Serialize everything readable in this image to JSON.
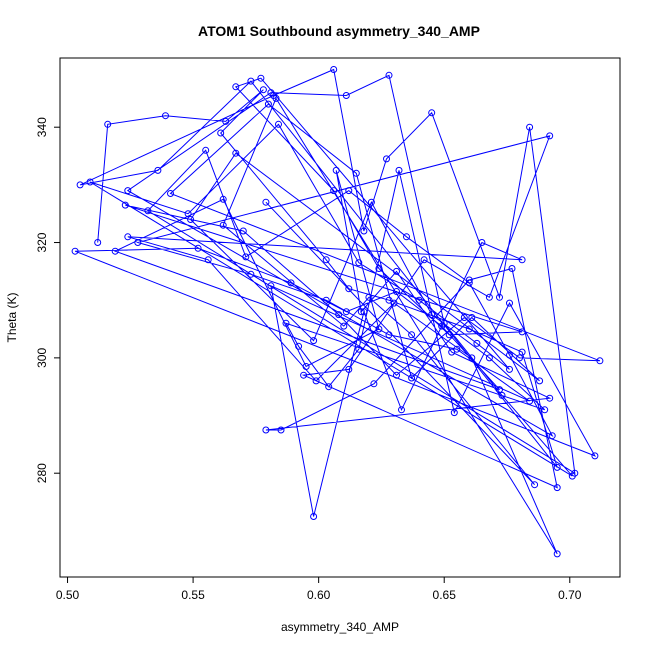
{
  "chart_data": {
    "type": "line",
    "title": "ATOM1 Southbound asymmetry_340_AMP",
    "xlabel": "asymmetry_340_AMP",
    "ylabel": "Theta (K)",
    "xlim": [
      0.497,
      0.72
    ],
    "ylim": [
      262,
      352
    ],
    "xticks": [
      0.5,
      0.55,
      0.6,
      0.65,
      0.7
    ],
    "xtick_labels": [
      "0.50",
      "0.55",
      "0.60",
      "0.65",
      "0.70"
    ],
    "yticks": [
      280,
      300,
      320,
      340
    ],
    "ytick_labels": [
      "280",
      "300",
      "320",
      "340"
    ],
    "grid": false,
    "series_color": "#0000ff",
    "marker": "open-circle",
    "x": [
      0.512,
      0.516,
      0.539,
      0.563,
      0.578,
      0.561,
      0.603,
      0.612,
      0.628,
      0.66,
      0.681,
      0.695,
      0.573,
      0.536,
      0.505,
      0.582,
      0.606,
      0.618,
      0.627,
      0.645,
      0.672,
      0.684,
      0.702,
      0.532,
      0.555,
      0.571,
      0.612,
      0.635,
      0.66,
      0.676,
      0.693,
      0.524,
      0.581,
      0.611,
      0.628,
      0.65,
      0.673,
      0.701,
      0.509,
      0.548,
      0.584,
      0.616,
      0.64,
      0.663,
      0.676,
      0.577,
      0.567,
      0.606,
      0.624,
      0.652,
      0.681,
      0.523,
      0.57,
      0.608,
      0.631,
      0.658,
      0.68,
      0.712,
      0.541,
      0.58,
      0.615,
      0.637,
      0.661,
      0.688,
      0.567,
      0.549,
      0.598,
      0.621,
      0.645,
      0.668,
      0.69,
      0.587,
      0.592,
      0.604,
      0.616,
      0.632,
      0.654,
      0.676,
      0.71,
      0.503,
      0.552,
      0.589,
      0.611,
      0.631,
      0.649,
      0.672,
      0.519,
      0.562,
      0.595,
      0.624,
      0.607,
      0.617,
      0.631,
      0.653,
      0.692,
      0.579,
      0.585,
      0.622,
      0.66,
      0.677,
      0.695,
      0.594,
      0.612,
      0.642,
      0.668,
      0.692,
      0.528,
      0.573,
      0.603,
      0.628,
      0.655,
      0.684,
      0.581,
      0.598,
      0.618,
      0.633,
      0.665,
      0.681,
      0.524,
      0.556,
      0.599,
      0.63,
      0.661,
      0.695,
      0.583,
      0.562,
      0.61,
      0.62,
      0.637,
      0.686,
      0.579
    ],
    "y": [
      320.0,
      340.5,
      342.0,
      341.0,
      346.5,
      339.0,
      317.0,
      312.0,
      310.0,
      305.0,
      301.0,
      281.0,
      348.0,
      332.5,
      330.0,
      345.5,
      350.0,
      322.0,
      334.5,
      342.5,
      310.5,
      340.0,
      280.0,
      325.5,
      336.0,
      317.5,
      329.0,
      321.0,
      313.0,
      300.5,
      286.5,
      329.0,
      346.0,
      345.5,
      349.0,
      306.0,
      293.5,
      279.5,
      330.5,
      325.0,
      340.5,
      316.5,
      310.0,
      302.5,
      298.0,
      348.5,
      347.0,
      329.0,
      315.5,
      304.0,
      304.5,
      326.5,
      322.0,
      307.5,
      297.0,
      307.0,
      300.0,
      299.5,
      328.5,
      344.0,
      332.0,
      296.5,
      307.0,
      296.0,
      335.5,
      324.0,
      303.0,
      327.0,
      307.5,
      300.0,
      291.0,
      306.0,
      302.0,
      295.0,
      301.5,
      332.5,
      290.5,
      309.5,
      283.0,
      318.5,
      319.0,
      313.0,
      308.0,
      311.5,
      305.5,
      294.5,
      318.5,
      327.5,
      298.5,
      305.0,
      332.5,
      308.0,
      315.0,
      301.0,
      293.0,
      287.5,
      287.5,
      295.5,
      313.5,
      315.5,
      277.5,
      297.0,
      298.0,
      317.0,
      310.5,
      338.5,
      320.0,
      314.5,
      310.0,
      304.0,
      301.5,
      292.5,
      312.5,
      272.5,
      308.0,
      291.0,
      320.0,
      317.0,
      321.0,
      317.0,
      296.0,
      309.5,
      300.0,
      266.0,
      345.0,
      323.0,
      305.5,
      310.5,
      304.0,
      278.0,
      327.0
    ]
  }
}
